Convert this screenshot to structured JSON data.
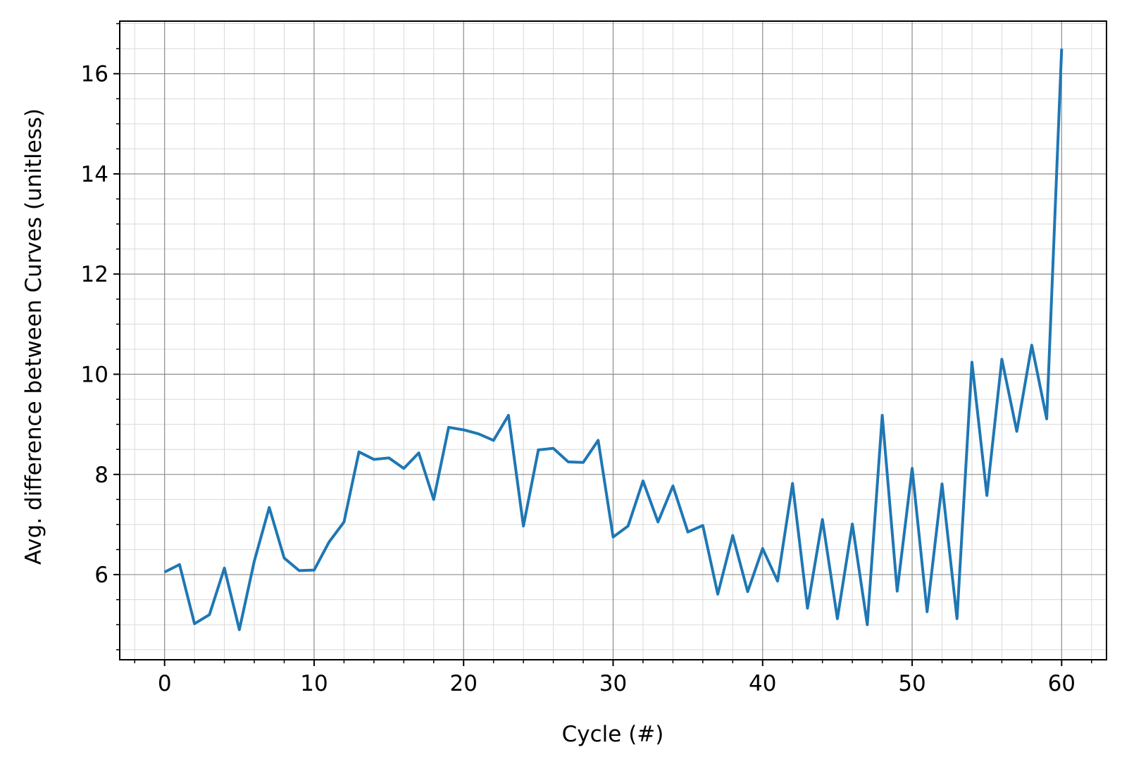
{
  "chart_data": {
    "type": "line",
    "title": "",
    "xlabel": "Cycle (#)",
    "ylabel": "Avg. difference between Curves (unitless)",
    "xlim": [
      -3,
      63
    ],
    "ylim": [
      4.3,
      17.05
    ],
    "x_ticks": [
      0,
      10,
      20,
      30,
      40,
      50,
      60
    ],
    "y_ticks": [
      6,
      8,
      10,
      12,
      14,
      16
    ],
    "x_minor_step": 2,
    "y_minor_step": 0.5,
    "grid": {
      "major": true,
      "minor": true
    },
    "legend": "none",
    "colors": {
      "line": "#1f77b4",
      "major_grid": "#8c8c8c",
      "minor_grid": "#d9d9d9",
      "axes": "#000000"
    },
    "series": [
      {
        "x": [
          0,
          1,
          2,
          3,
          4,
          5,
          6,
          7,
          8,
          9,
          10,
          11,
          12,
          13,
          14,
          15,
          16,
          17,
          18,
          19,
          20,
          21,
          22,
          23,
          24,
          25,
          26,
          27,
          28,
          29,
          30,
          31,
          32,
          33,
          34,
          35,
          36,
          37,
          38,
          39,
          40,
          41,
          42,
          43,
          44,
          45,
          46,
          47,
          48,
          49,
          50,
          51,
          52,
          53,
          54,
          55,
          56,
          57,
          58,
          59,
          60
        ],
        "values": [
          6.05,
          6.2,
          5.02,
          5.2,
          6.13,
          4.9,
          6.27,
          7.34,
          6.33,
          6.08,
          6.09,
          6.65,
          7.05,
          8.45,
          8.3,
          8.33,
          8.12,
          8.43,
          7.5,
          8.94,
          8.89,
          8.81,
          8.68,
          9.18,
          6.97,
          8.49,
          8.52,
          8.25,
          8.24,
          8.68,
          6.75,
          6.97,
          7.87,
          7.05,
          7.77,
          6.85,
          6.98,
          5.61,
          6.78,
          5.66,
          6.52,
          5.87,
          7.82,
          5.33,
          7.1,
          5.12,
          7.01,
          5.0,
          9.18,
          5.67,
          8.12,
          5.26,
          7.81,
          5.12,
          10.24,
          7.58,
          10.3,
          8.86,
          10.58,
          9.11,
          16.5
        ]
      }
    ]
  }
}
